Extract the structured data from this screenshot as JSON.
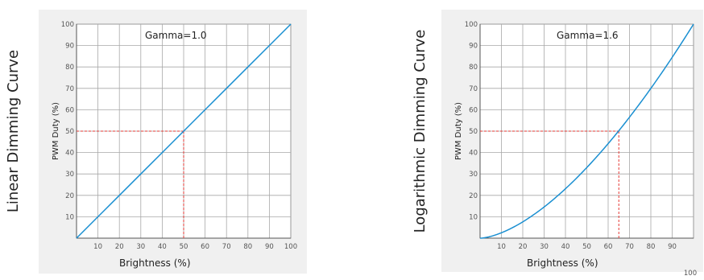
{
  "chart_data": [
    {
      "type": "line",
      "side_title": "Linear Dimming Curve",
      "annotation": "Gamma=1.0",
      "xlabel": "Brightness (%)",
      "ylabel": "PWM Duty (%)",
      "xlim": [
        0,
        100
      ],
      "ylim": [
        0,
        100
      ],
      "x_ticks": [
        "10",
        "20",
        "30",
        "40",
        "50",
        "60",
        "70",
        "80",
        "90",
        "100"
      ],
      "y_ticks": [
        "10",
        "20",
        "30",
        "40",
        "50",
        "60",
        "70",
        "80",
        "90",
        "100"
      ],
      "gamma": 1.0,
      "series": [
        {
          "x": [
            0,
            10,
            20,
            30,
            40,
            50,
            60,
            70,
            80,
            90,
            100
          ],
          "y": [
            0,
            10,
            20,
            30,
            40,
            50,
            60,
            70,
            80,
            90,
            100
          ]
        }
      ],
      "reference": {
        "x": 50,
        "y": 50
      },
      "grid": true,
      "colors": {
        "line": "#1a8fd1",
        "reference": "#e53935",
        "background": "#f0f0f0"
      }
    },
    {
      "type": "line",
      "side_title": "Logarithmic Dimming Curve",
      "annotation": "Gamma=1.6",
      "xlabel": "Brightness (%)",
      "ylabel": "PWM Duty (%)",
      "xlim": [
        0,
        100
      ],
      "ylim": [
        0,
        100
      ],
      "x_ticks": [
        "10",
        "20",
        "30",
        "40",
        "50",
        "60",
        "70",
        "80",
        "90"
      ],
      "y_ticks": [
        "10",
        "20",
        "30",
        "40",
        "50",
        "60",
        "70",
        "80",
        "90",
        "100"
      ],
      "outside_label": "100",
      "gamma": 1.6,
      "series": [
        {
          "x": [
            0,
            10,
            20,
            30,
            40,
            50,
            60,
            70,
            80,
            90,
            100
          ],
          "y": [
            0,
            2.5,
            7.6,
            14.5,
            23.1,
            33.0,
            44.2,
            56.5,
            70.0,
            84.5,
            100
          ]
        }
      ],
      "reference": {
        "x": 65,
        "y": 50
      },
      "grid": true,
      "colors": {
        "line": "#1a8fd1",
        "reference": "#e53935",
        "background": "#f0f0f0"
      }
    }
  ]
}
